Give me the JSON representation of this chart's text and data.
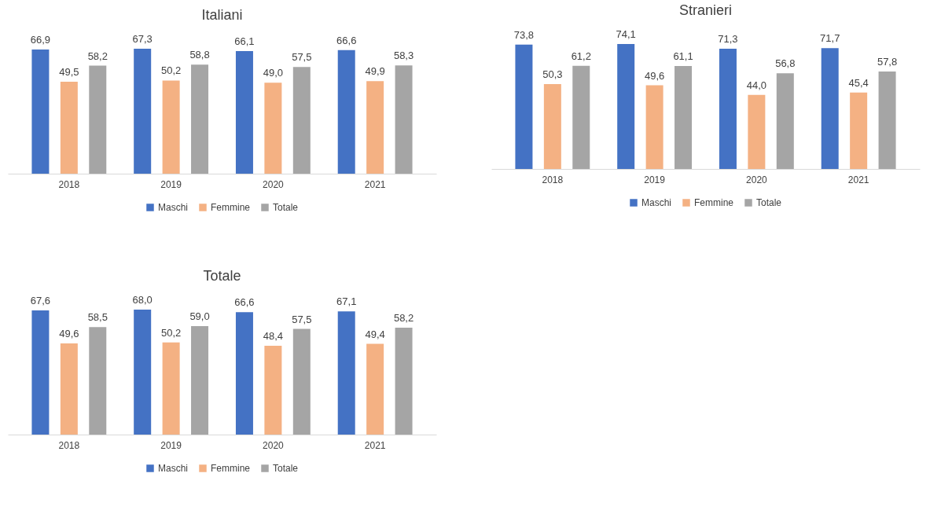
{
  "chart_data": [
    {
      "type": "bar",
      "title": "Italiani",
      "categories": [
        "2018",
        "2019",
        "2020",
        "2021"
      ],
      "legend": "bottom",
      "series": [
        {
          "name": "Maschi",
          "color": "#4472c4",
          "values": [
            66.9,
            67.3,
            66.1,
            66.6
          ],
          "value_labels": [
            "66,9",
            "67,3",
            "66,1",
            "66,6"
          ]
        },
        {
          "name": "Femmine",
          "color": "#f4b183",
          "values": [
            49.5,
            50.2,
            49.0,
            49.9
          ],
          "value_labels": [
            "49,5",
            "50,2",
            "49,0",
            "49,9"
          ]
        },
        {
          "name": "Totale",
          "color": "#a5a5a5",
          "values": [
            58.2,
            58.8,
            57.5,
            58.3
          ],
          "value_labels": [
            "58,2",
            "58,8",
            "57,5",
            "58,3"
          ]
        }
      ]
    },
    {
      "type": "bar",
      "title": "Stranieri",
      "categories": [
        "2018",
        "2019",
        "2020",
        "2021"
      ],
      "legend": "bottom",
      "series": [
        {
          "name": "Maschi",
          "color": "#4472c4",
          "values": [
            73.8,
            74.1,
            71.3,
            71.7
          ],
          "value_labels": [
            "73,8",
            "74,1",
            "71,3",
            "71,7"
          ]
        },
        {
          "name": "Femmine",
          "color": "#f4b183",
          "values": [
            50.3,
            49.6,
            44.0,
            45.4
          ],
          "value_labels": [
            "50,3",
            "49,6",
            "44,0",
            "45,4"
          ]
        },
        {
          "name": "Totale",
          "color": "#a5a5a5",
          "values": [
            61.2,
            61.1,
            56.8,
            57.8
          ],
          "value_labels": [
            "61,2",
            "61,1",
            "56,8",
            "57,8"
          ]
        }
      ]
    },
    {
      "type": "bar",
      "title": "Totale",
      "categories": [
        "2018",
        "2019",
        "2020",
        "2021"
      ],
      "legend": "bottom",
      "series": [
        {
          "name": "Maschi",
          "color": "#4472c4",
          "values": [
            67.6,
            68.0,
            66.6,
            67.1
          ],
          "value_labels": [
            "67,6",
            "68,0",
            "66,6",
            "67,1"
          ]
        },
        {
          "name": "Femmine",
          "color": "#f4b183",
          "values": [
            49.6,
            50.2,
            48.4,
            49.4
          ],
          "value_labels": [
            "49,6",
            "50,2",
            "48,4",
            "49,4"
          ]
        },
        {
          "name": "Totale",
          "color": "#a5a5a5",
          "values": [
            58.5,
            59.0,
            57.5,
            58.2
          ],
          "value_labels": [
            "58,5",
            "59,0",
            "57,5",
            "58,2"
          ]
        }
      ]
    }
  ]
}
